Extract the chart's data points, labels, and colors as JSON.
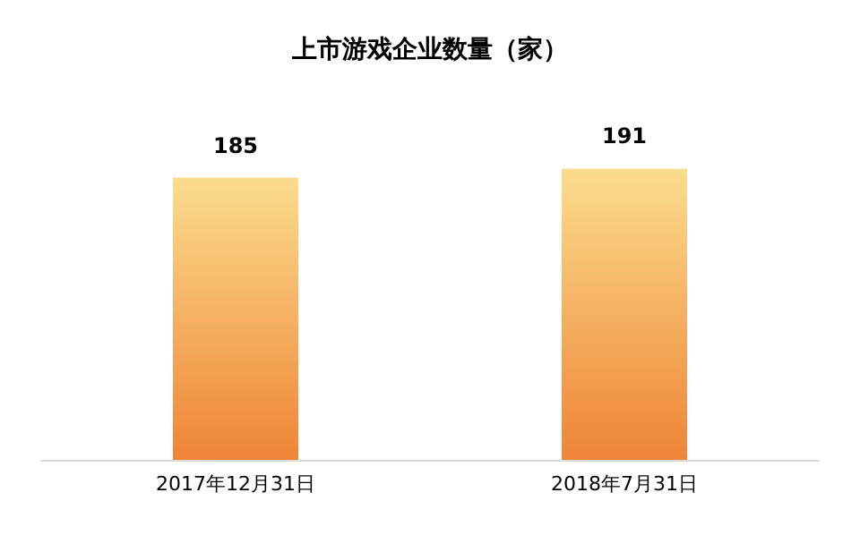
{
  "chart_data": {
    "type": "bar",
    "title": "上市游戏企业数量（家）",
    "categories": [
      "2017年12月31日",
      "2018年7月31日"
    ],
    "values": [
      185,
      191
    ],
    "color": "#ef8436",
    "data_labels": true,
    "tick_labels": "x"
  }
}
